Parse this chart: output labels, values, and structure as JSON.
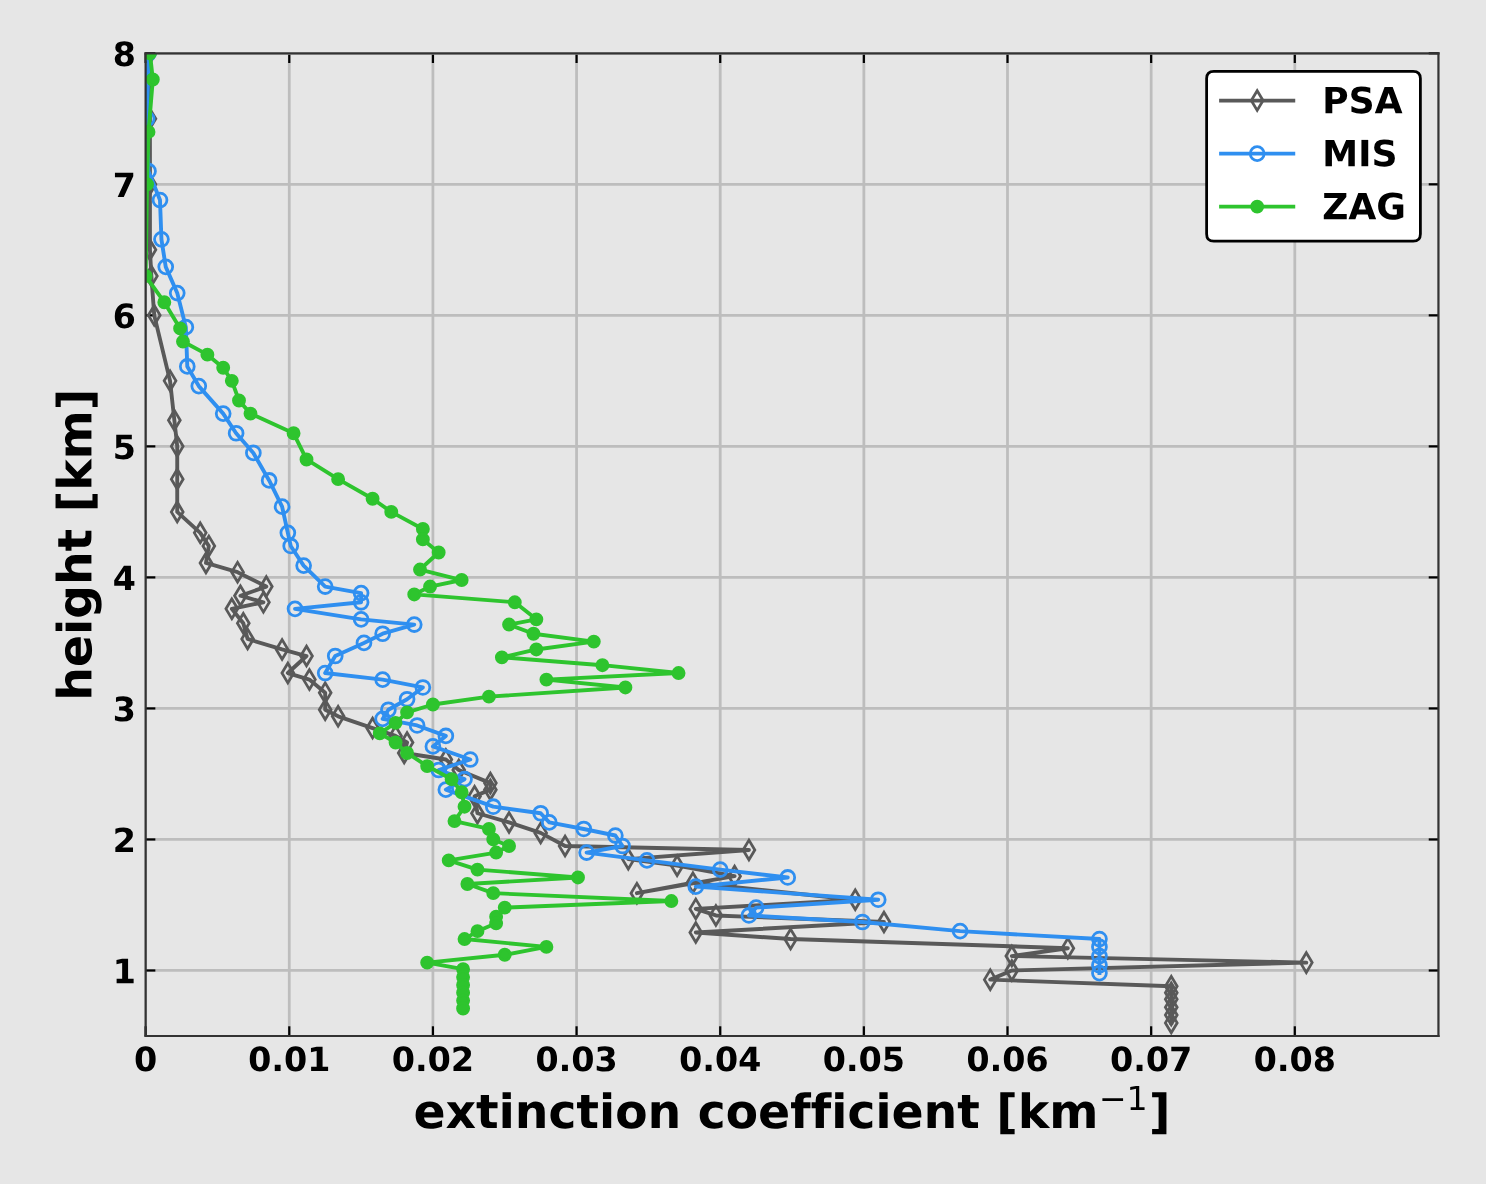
{
  "chart_data": {
    "type": "line",
    "xlabel": "extinction coefficient [km$^{−1}$]",
    "ylabel": "height [km]",
    "xlim": [
      0,
      0.09
    ],
    "ylim": [
      0.5,
      8
    ],
    "xticks": [
      0,
      0.01,
      0.02,
      0.03,
      0.04,
      0.05,
      0.06,
      0.07,
      0.08
    ],
    "yticks": [
      1,
      2,
      3,
      4,
      5,
      6,
      7,
      8
    ],
    "grid": true,
    "legend": "top right",
    "line_style": "solid",
    "series": [
      {
        "name": "PSA",
        "color": "#595959",
        "marker": "diamond",
        "x": [
          0.0003,
          0.0003,
          0.0003,
          0.0003,
          0.0004,
          0.0006,
          0.0017,
          0.002,
          0.0022,
          0.0022,
          0.0022,
          0.0038,
          0.0044,
          0.0042,
          0.0064,
          0.0084,
          0.0066,
          0.0082,
          0.006,
          0.0068,
          0.0071,
          0.0095,
          0.0112,
          0.0099,
          0.0114,
          0.0125,
          0.0125,
          0.0134,
          0.0158,
          0.0174,
          0.0182,
          0.018,
          0.0209,
          0.0218,
          0.024,
          0.024,
          0.0229,
          0.0231,
          0.0253,
          0.0275,
          0.0292,
          0.042,
          0.0336,
          0.037,
          0.041,
          0.0342,
          0.0381,
          0.0494,
          0.0383,
          0.0397,
          0.0514,
          0.0383,
          0.0449,
          0.0642,
          0.0603,
          0.0808,
          0.0603,
          0.0588,
          0.0714,
          0.0714,
          0.0714,
          0.0714,
          0.0714,
          0.0714
        ],
        "values": [
          8,
          7.5,
          7,
          6.5,
          6.3,
          6,
          5.5,
          5.2,
          5,
          4.75,
          4.5,
          4.34,
          4.24,
          4.11,
          4.04,
          3.93,
          3.86,
          3.81,
          3.76,
          3.65,
          3.53,
          3.45,
          3.4,
          3.27,
          3.22,
          3.12,
          2.99,
          2.94,
          2.85,
          2.79,
          2.74,
          2.66,
          2.61,
          2.53,
          2.43,
          2.38,
          2.33,
          2.2,
          2.13,
          2.05,
          1.95,
          1.92,
          1.85,
          1.8,
          1.72,
          1.59,
          1.67,
          1.54,
          1.47,
          1.42,
          1.37,
          1.29,
          1.24,
          1.17,
          1.11,
          1.06,
          1.0,
          0.93,
          0.88,
          0.83,
          0.78,
          0.72,
          0.66,
          0.6
        ]
      },
      {
        "name": "MIS",
        "color": "#2f8ff0",
        "marker": "circle",
        "x": [
          0.0002,
          0.0001,
          0.0002,
          0.001,
          0.0011,
          0.0014,
          0.0022,
          0.0028,
          0.0029,
          0.0037,
          0.0054,
          0.0063,
          0.0075,
          0.0086,
          0.0095,
          0.0099,
          0.0101,
          0.011,
          0.0125,
          0.015,
          0.015,
          0.0104,
          0.015,
          0.0187,
          0.0165,
          0.0152,
          0.0132,
          0.0125,
          0.0165,
          0.0193,
          0.0182,
          0.0169,
          0.0165,
          0.0189,
          0.0209,
          0.02,
          0.0226,
          0.0204,
          0.0222,
          0.0209,
          0.0242,
          0.0275,
          0.0281,
          0.0305,
          0.0327,
          0.0332,
          0.0307,
          0.0349,
          0.04,
          0.0447,
          0.0383,
          0.051,
          0.0425,
          0.042,
          0.0499,
          0.0567,
          0.0664,
          0.0664,
          0.0664,
          0.0664,
          0.0664
        ],
        "values": [
          8,
          7.5,
          7.1,
          6.88,
          6.58,
          6.37,
          6.17,
          5.91,
          5.61,
          5.46,
          5.25,
          5.1,
          4.95,
          4.74,
          4.54,
          4.34,
          4.24,
          4.09,
          3.93,
          3.88,
          3.81,
          3.76,
          3.68,
          3.64,
          3.57,
          3.5,
          3.4,
          3.27,
          3.22,
          3.16,
          3.07,
          2.99,
          2.92,
          2.87,
          2.79,
          2.71,
          2.61,
          2.53,
          2.46,
          2.38,
          2.25,
          2.2,
          2.13,
          2.08,
          2.03,
          1.95,
          1.9,
          1.84,
          1.77,
          1.71,
          1.64,
          1.54,
          1.48,
          1.42,
          1.37,
          1.3,
          1.24,
          1.18,
          1.11,
          1.04,
          0.98
        ]
      },
      {
        "name": "ZAG",
        "color": "#2ec42e",
        "marker": "circle",
        "x": [
          0.0003,
          0.0005,
          0.0002,
          0.0001,
          0.0,
          0.0013,
          0.0024,
          0.0026,
          0.0043,
          0.0054,
          0.006,
          0.0065,
          0.0073,
          0.0103,
          0.0112,
          0.0134,
          0.0158,
          0.0171,
          0.0193,
          0.0193,
          0.0204,
          0.0191,
          0.022,
          0.0198,
          0.0187,
          0.0257,
          0.0272,
          0.0253,
          0.027,
          0.0312,
          0.0272,
          0.0248,
          0.0318,
          0.0371,
          0.0279,
          0.0334,
          0.0239,
          0.02,
          0.0182,
          0.0174,
          0.0163,
          0.0174,
          0.0182,
          0.0196,
          0.0213,
          0.022,
          0.0222,
          0.0215,
          0.0239,
          0.0242,
          0.0253,
          0.0244,
          0.0211,
          0.0231,
          0.0301,
          0.0224,
          0.0242,
          0.0366,
          0.025,
          0.0244,
          0.0244,
          0.0231,
          0.0222,
          0.0279,
          0.025,
          0.0196,
          0.0221,
          0.0221,
          0.0221,
          0.0221,
          0.0221,
          0.0221
        ],
        "values": [
          8,
          7.8,
          7.4,
          7,
          6.3,
          6.1,
          5.9,
          5.8,
          5.7,
          5.6,
          5.5,
          5.35,
          5.25,
          5.1,
          4.9,
          4.75,
          4.6,
          4.5,
          4.37,
          4.29,
          4.19,
          4.06,
          3.98,
          3.93,
          3.87,
          3.81,
          3.68,
          3.64,
          3.57,
          3.51,
          3.45,
          3.39,
          3.33,
          3.27,
          3.22,
          3.16,
          3.09,
          3.03,
          2.97,
          2.89,
          2.81,
          2.74,
          2.66,
          2.56,
          2.46,
          2.36,
          2.25,
          2.14,
          2.08,
          2.0,
          1.95,
          1.9,
          1.84,
          1.77,
          1.71,
          1.66,
          1.59,
          1.53,
          1.48,
          1.41,
          1.36,
          1.3,
          1.24,
          1.18,
          1.12,
          1.06,
          1.01,
          0.95,
          0.89,
          0.83,
          0.77,
          0.71
        ]
      }
    ]
  }
}
